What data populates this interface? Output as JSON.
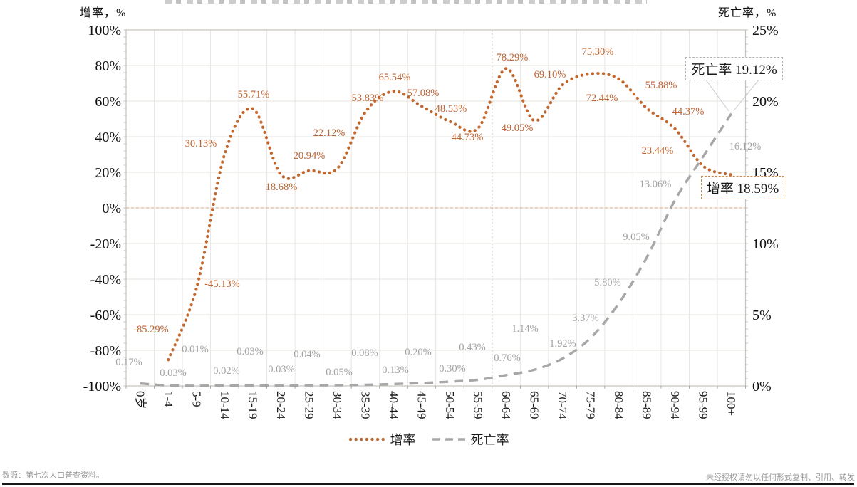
{
  "chart_data": {
    "type": "line",
    "categories": [
      "0岁",
      "1-4",
      "5-9",
      "10-14",
      "15-19",
      "20-24",
      "25-29",
      "30-34",
      "35-39",
      "40-44",
      "45-49",
      "50-54",
      "55-59",
      "60-64",
      "65-69",
      "70-74",
      "75-79",
      "80-84",
      "85-89",
      "90-94",
      "95-99",
      "100+"
    ],
    "series": [
      {
        "name": "增率",
        "axis": "left",
        "color": "#C2682F",
        "line_style": "dotted",
        "values": [
          null,
          -85.29,
          -45.13,
          30.13,
          55.71,
          18.68,
          20.94,
          22.12,
          53.83,
          65.54,
          57.08,
          48.53,
          44.73,
          78.29,
          49.05,
          69.1,
          75.3,
          72.44,
          55.88,
          44.37,
          23.44,
          18.59
        ]
      },
      {
        "name": "死亡率",
        "axis": "right",
        "color": "#A7A7A7",
        "line_style": "dashed",
        "values": [
          0.17,
          0.03,
          0.01,
          0.02,
          0.03,
          0.03,
          0.04,
          0.05,
          0.08,
          0.13,
          0.2,
          0.3,
          0.43,
          0.76,
          1.14,
          1.92,
          3.37,
          5.8,
          9.05,
          13.06,
          16.12,
          19.12
        ]
      }
    ],
    "left_axis": {
      "title": "增率，%",
      "min": -100,
      "max": 100,
      "step": 20,
      "ticks": [
        "100%",
        "80%",
        "60%",
        "40%",
        "20%",
        "0%",
        "-20%",
        "-40%",
        "-60%",
        "-80%",
        "-100%"
      ]
    },
    "right_axis": {
      "title": "死亡率，%",
      "min": 0,
      "max": 25,
      "step": 5,
      "ticks": [
        "25%",
        "20%",
        "15%",
        "10%",
        "5%",
        "0%"
      ]
    },
    "annotations": {
      "death": "死亡率 19.12%",
      "growth": "增率 18.59%"
    },
    "separator_after_category": "55-59",
    "zero_line": true,
    "grid": true,
    "legend_position": "bottom"
  },
  "footer": {
    "source": "数源：第七次人口普查资料。",
    "notice": "未经授权请勿以任何形式复制、引用、转发"
  }
}
